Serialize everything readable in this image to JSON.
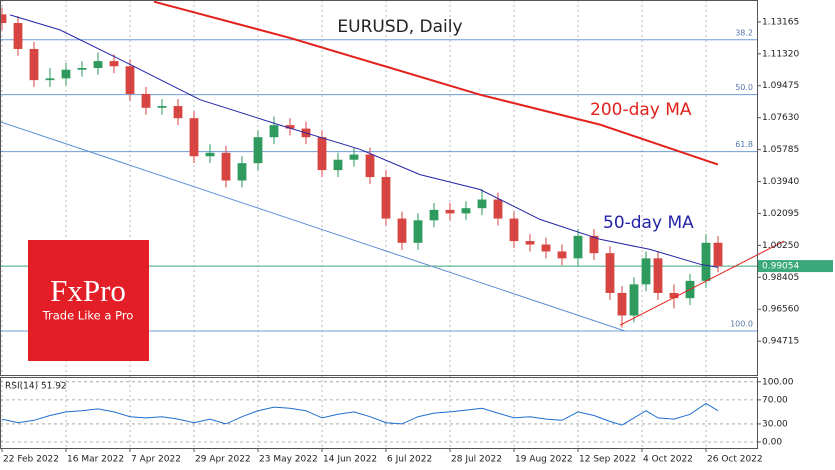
{
  "chart_data": [
    {
      "type": "candlestick",
      "title": "EURUSD, Daily",
      "xlim": [
        -0.5,
        188.75
      ],
      "xticks": [
        {
          "value": 0,
          "label": "22 Feb 2022"
        },
        {
          "value": 16,
          "label": "16 Mar 2022"
        },
        {
          "value": 32,
          "label": "7 Apr 2022"
        },
        {
          "value": 48,
          "label": "29 Apr 2022"
        },
        {
          "value": 64,
          "label": "23 May 2022"
        },
        {
          "value": 80,
          "label": "14 Jun 2022"
        },
        {
          "value": 96,
          "label": "6 Jul 2022"
        },
        {
          "value": 112,
          "label": "28 Jul 2022"
        },
        {
          "value": 128,
          "label": "19 Aug 2022"
        },
        {
          "value": 144,
          "label": "12 Sep 2022"
        },
        {
          "value": 160,
          "label": "4 Oct 2022"
        },
        {
          "value": 176,
          "label": "26 Oct 2022"
        }
      ],
      "ylim": [
        0.9276,
        1.1443
      ],
      "yticks": [
        1.13165,
        {
          "value": 1.1132,
          "label": "1.11320"
        },
        1.09475,
        {
          "value": 1.0763,
          "label": "1.07630"
        },
        1.05785,
        {
          "value": 1.0394,
          "label": "1.03940"
        },
        1.02095,
        {
          "value": 1.0025,
          "label": "1.00250"
        },
        0.98405,
        {
          "value": 0.9656,
          "label": "0.96560"
        },
        0.94715
      ],
      "grid": true,
      "up_color": "#2e9a5e",
      "down_color": "#d64541",
      "candles": [
        [
          0,
          1.136,
          1.14,
          1.127,
          1.131
        ],
        [
          4,
          1.131,
          1.135,
          1.112,
          1.116
        ],
        [
          8,
          1.116,
          1.12,
          1.094,
          1.098
        ],
        [
          12,
          1.098,
          1.105,
          1.094,
          1.099
        ],
        [
          16,
          1.099,
          1.108,
          1.095,
          1.104
        ],
        [
          20,
          1.104,
          1.109,
          1.1,
          1.105
        ],
        [
          24,
          1.105,
          1.114,
          1.101,
          1.109
        ],
        [
          28,
          1.109,
          1.113,
          1.102,
          1.106
        ],
        [
          32,
          1.106,
          1.11,
          1.086,
          1.09
        ],
        [
          36,
          1.09,
          1.094,
          1.078,
          1.082
        ],
        [
          40,
          1.082,
          1.087,
          1.078,
          1.083
        ],
        [
          44,
          1.083,
          1.087,
          1.072,
          1.076
        ],
        [
          48,
          1.076,
          1.08,
          1.05,
          1.054
        ],
        [
          52,
          1.054,
          1.061,
          1.05,
          1.056
        ],
        [
          56,
          1.056,
          1.06,
          1.036,
          1.04
        ],
        [
          60,
          1.04,
          1.054,
          1.036,
          1.05
        ],
        [
          64,
          1.05,
          1.069,
          1.046,
          1.065
        ],
        [
          68,
          1.065,
          1.077,
          1.061,
          1.072
        ],
        [
          72,
          1.072,
          1.076,
          1.066,
          1.07
        ],
        [
          76,
          1.07,
          1.074,
          1.061,
          1.065
        ],
        [
          80,
          1.065,
          1.069,
          1.042,
          1.046
        ],
        [
          84,
          1.046,
          1.056,
          1.042,
          1.052
        ],
        [
          88,
          1.052,
          1.059,
          1.048,
          1.055
        ],
        [
          92,
          1.055,
          1.059,
          1.038,
          1.042
        ],
        [
          96,
          1.042,
          1.046,
          1.014,
          1.018
        ],
        [
          100,
          1.018,
          1.022,
          1.0,
          1.004
        ],
        [
          104,
          1.004,
          1.021,
          1.0,
          1.017
        ],
        [
          108,
          1.017,
          1.027,
          1.013,
          1.023
        ],
        [
          112,
          1.023,
          1.027,
          1.017,
          1.021
        ],
        [
          116,
          1.021,
          1.028,
          1.017,
          1.024
        ],
        [
          120,
          1.024,
          1.035,
          1.02,
          1.029
        ],
        [
          124,
          1.029,
          1.033,
          1.014,
          1.018
        ],
        [
          128,
          1.018,
          1.022,
          1.001,
          1.005
        ],
        [
          132,
          1.005,
          1.009,
          0.999,
          1.003
        ],
        [
          136,
          1.003,
          1.007,
          0.995,
          0.999
        ],
        [
          140,
          0.999,
          1.003,
          0.991,
          0.995
        ],
        [
          144,
          0.995,
          1.012,
          0.991,
          1.008
        ],
        [
          148,
          1.008,
          1.012,
          0.994,
          0.998
        ],
        [
          152,
          0.998,
          1.002,
          0.971,
          0.975
        ],
        [
          155,
          0.975,
          0.979,
          0.955,
          0.962
        ],
        [
          158,
          0.962,
          0.984,
          0.958,
          0.98
        ],
        [
          161,
          0.98,
          0.999,
          0.976,
          0.995
        ],
        [
          164,
          0.995,
          0.999,
          0.971,
          0.975
        ],
        [
          168,
          0.975,
          0.98,
          0.966,
          0.972
        ],
        [
          172,
          0.972,
          0.986,
          0.968,
          0.982
        ],
        [
          176,
          0.982,
          1.009,
          0.978,
          1.004
        ],
        [
          179,
          1.004,
          1.008,
          0.987,
          0.9905
        ]
      ],
      "series": [
        {
          "name": "200-day MA",
          "color": "#e3211c",
          "x": [
            38,
            72,
            119.5,
            149.5,
            179
          ],
          "values": [
            1.1433,
            1.1224,
            1.0896,
            1.0723,
            1.0492
          ]
        },
        {
          "name": "50-day MA",
          "color": "#2424a8",
          "x": [
            2,
            14.5,
            29.5,
            49.5,
            69.5,
            89.5,
            104.5,
            119.5,
            134.5,
            149.5,
            162,
            174.5,
            179
          ],
          "values": [
            1.1357,
            1.127,
            1.11,
            1.0867,
            1.072,
            1.058,
            1.0434,
            1.0348,
            1.0175,
            1.006,
            1.0002,
            0.9916,
            0.9898
          ]
        }
      ],
      "levels": [
        {
          "label": "38.2",
          "value": 1.1213
        },
        {
          "label": "50.0",
          "value": 1.0896
        },
        {
          "label": "61.8",
          "value": 1.0567
        },
        {
          "label": "100.0",
          "value": 0.953
        }
      ],
      "level_color": "#6f9bd6",
      "channel": {
        "color": "#5b8fd6",
        "x": [
          -0.5,
          155.75
        ],
        "values": [
          1.074,
          0.953
        ]
      },
      "trendline": {
        "color": "#e3211c",
        "x": [
          154.5,
          195.5
        ],
        "values": [
          0.9564,
          1.0049
        ]
      },
      "last_price": 0.99054,
      "last_color": "#3aa87a"
    },
    {
      "type": "line",
      "title": "RSI(14) 51.92",
      "xlim": [
        -0.5,
        188.75
      ],
      "x": [
        0,
        4,
        8,
        12,
        16,
        20,
        24,
        28,
        32,
        36,
        40,
        44,
        48,
        52,
        56,
        60,
        64,
        68,
        72,
        76,
        80,
        84,
        88,
        92,
        96,
        100,
        104,
        108,
        112,
        116,
        120,
        124,
        128,
        132,
        136,
        140,
        144,
        148,
        152,
        155,
        158,
        161,
        164,
        168,
        172,
        176,
        179
      ],
      "ylim": [
        -10,
        108
      ],
      "yticks": [
        {
          "value": 100,
          "label": "100.00"
        },
        {
          "value": 70,
          "label": "70.00"
        },
        {
          "value": 30,
          "label": "30.00"
        },
        {
          "value": 0,
          "label": "0.00"
        }
      ],
      "series": [
        {
          "color": "#1e6fd0",
          "values": [
            38,
            32,
            36,
            44,
            50,
            52,
            55,
            50,
            42,
            40,
            42,
            38,
            32,
            38,
            30,
            42,
            52,
            58,
            56,
            52,
            40,
            46,
            50,
            42,
            32,
            30,
            42,
            48,
            50,
            53,
            56,
            48,
            40,
            42,
            38,
            36,
            50,
            44,
            34,
            28,
            40,
            52,
            40,
            38,
            46,
            64,
            52
          ]
        }
      ]
    }
  ],
  "logo": {
    "brand": "FxPro",
    "tagline": "Trade Like a Pro"
  }
}
